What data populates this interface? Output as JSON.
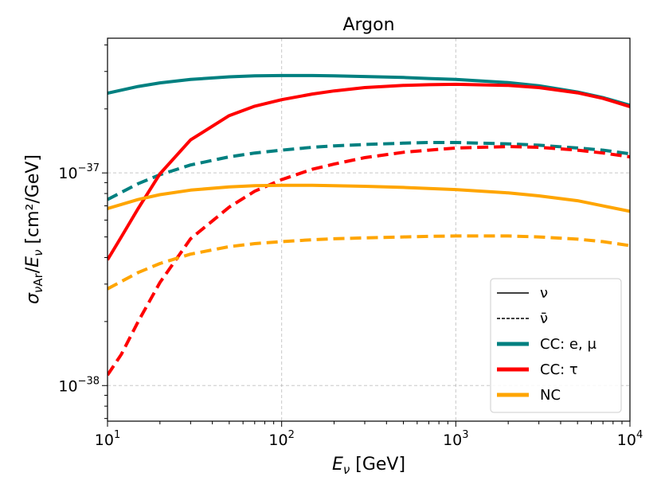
{
  "chart_data": {
    "type": "line",
    "title": "Argon",
    "xlabel": "E_ν [GeV]",
    "ylabel": "σ_νAr/E_ν [cm²/GeV]",
    "xscale": "log",
    "yscale": "log",
    "xlim": [
      10,
      10000
    ],
    "ylim": [
      6.8e-39,
      4.3e-37
    ],
    "grid": true,
    "legend_position": "lower right",
    "x_ticks": [
      {
        "value": 10,
        "base": "10",
        "exp": "1"
      },
      {
        "value": 100,
        "base": "10",
        "exp": "2"
      },
      {
        "value": 1000,
        "base": "10",
        "exp": "3"
      },
      {
        "value": 10000,
        "base": "10",
        "exp": "4"
      }
    ],
    "y_ticks": [
      {
        "value": 1e-38,
        "base": "10",
        "exp": "−38"
      },
      {
        "value": 1e-37,
        "base": "10",
        "exp": "−37"
      }
    ],
    "legend": [
      {
        "label": "ν",
        "style": "solid",
        "color": "#000000",
        "width": 1.5
      },
      {
        "label": "ν̄",
        "style": "dashed",
        "color": "#000000",
        "width": 1.5
      },
      {
        "label": "CC: e, μ",
        "style": "solid",
        "color": "#008080",
        "width": 5
      },
      {
        "label": "CC: τ",
        "style": "solid",
        "color": "#ff0000",
        "width": 5
      },
      {
        "label": "NC",
        "style": "solid",
        "color": "#ffa500",
        "width": 5
      }
    ],
    "series": [
      {
        "name": "CC: e, μ ν",
        "color": "#008080",
        "style": "solid",
        "x": [
          10,
          15,
          20,
          30,
          50,
          70,
          100,
          150,
          200,
          300,
          500,
          700,
          1000,
          2000,
          3000,
          5000,
          7000,
          10000
        ],
        "y": [
          2.37e-37,
          2.55e-37,
          2.65e-37,
          2.75e-37,
          2.83e-37,
          2.86e-37,
          2.87e-37,
          2.87e-37,
          2.86e-37,
          2.84e-37,
          2.81e-37,
          2.78e-37,
          2.75e-37,
          2.66e-37,
          2.57e-37,
          2.4e-37,
          2.26e-37,
          2.08e-37
        ]
      },
      {
        "name": "CC: e, μ ν̄",
        "color": "#008080",
        "style": "dashed",
        "x": [
          10,
          15,
          20,
          30,
          50,
          70,
          100,
          150,
          200,
          300,
          500,
          700,
          1000,
          2000,
          3000,
          5000,
          7000,
          10000
        ],
        "y": [
          7.5e-38,
          8.9e-38,
          9.8e-38,
          1.09e-37,
          1.19e-37,
          1.24e-37,
          1.28e-37,
          1.32e-37,
          1.34e-37,
          1.36e-37,
          1.38e-37,
          1.39e-37,
          1.39e-37,
          1.37e-37,
          1.35e-37,
          1.31e-37,
          1.28e-37,
          1.23e-37
        ]
      },
      {
        "name": "CC: τ ν",
        "color": "#ff0000",
        "style": "solid",
        "x": [
          10,
          12,
          15,
          20,
          30,
          50,
          70,
          100,
          150,
          200,
          300,
          500,
          700,
          1000,
          2000,
          3000,
          5000,
          7000,
          10000
        ],
        "y": [
          3.9e-38,
          5e-38,
          6.8e-38,
          9.9e-38,
          1.43e-37,
          1.86e-37,
          2.06e-37,
          2.21e-37,
          2.35e-37,
          2.43e-37,
          2.52e-37,
          2.58e-37,
          2.6e-37,
          2.61e-37,
          2.58e-37,
          2.52e-37,
          2.38e-37,
          2.24e-37,
          2.05e-37
        ]
      },
      {
        "name": "CC: τ ν̄",
        "color": "#ff0000",
        "style": "dashed",
        "x": [
          10,
          12,
          15,
          20,
          30,
          50,
          70,
          100,
          150,
          200,
          300,
          500,
          700,
          1000,
          2000,
          3000,
          5000,
          7000,
          10000
        ],
        "y": [
          1.12e-38,
          1.4e-38,
          2e-38,
          3.05e-38,
          4.9e-38,
          6.9e-38,
          8.2e-38,
          9.3e-38,
          1.04e-37,
          1.1e-37,
          1.18e-37,
          1.25e-37,
          1.28e-37,
          1.31e-37,
          1.33e-37,
          1.32e-37,
          1.28e-37,
          1.24e-37,
          1.19e-37
        ]
      },
      {
        "name": "NC ν",
        "color": "#ffa500",
        "style": "solid",
        "x": [
          10,
          15,
          20,
          30,
          50,
          70,
          100,
          150,
          200,
          300,
          500,
          700,
          1000,
          2000,
          3000,
          5000,
          7000,
          10000
        ],
        "y": [
          6.8e-38,
          7.5e-38,
          7.9e-38,
          8.3e-38,
          8.6e-38,
          8.7e-38,
          8.75e-38,
          8.75e-38,
          8.7e-38,
          8.65e-38,
          8.55e-38,
          8.45e-38,
          8.35e-38,
          8.05e-38,
          7.8e-38,
          7.4e-38,
          7e-38,
          6.6e-38
        ]
      },
      {
        "name": "NC ν̄",
        "color": "#ffa500",
        "style": "dashed",
        "x": [
          10,
          15,
          20,
          30,
          50,
          70,
          100,
          150,
          200,
          300,
          500,
          700,
          1000,
          2000,
          3000,
          5000,
          7000,
          10000
        ],
        "y": [
          2.85e-38,
          3.4e-38,
          3.75e-38,
          4.15e-38,
          4.5e-38,
          4.65e-38,
          4.75e-38,
          4.85e-38,
          4.9e-38,
          4.95e-38,
          5e-38,
          5.03e-38,
          5.05e-38,
          5.05e-38,
          5e-38,
          4.88e-38,
          4.75e-38,
          4.55e-38
        ]
      }
    ]
  }
}
